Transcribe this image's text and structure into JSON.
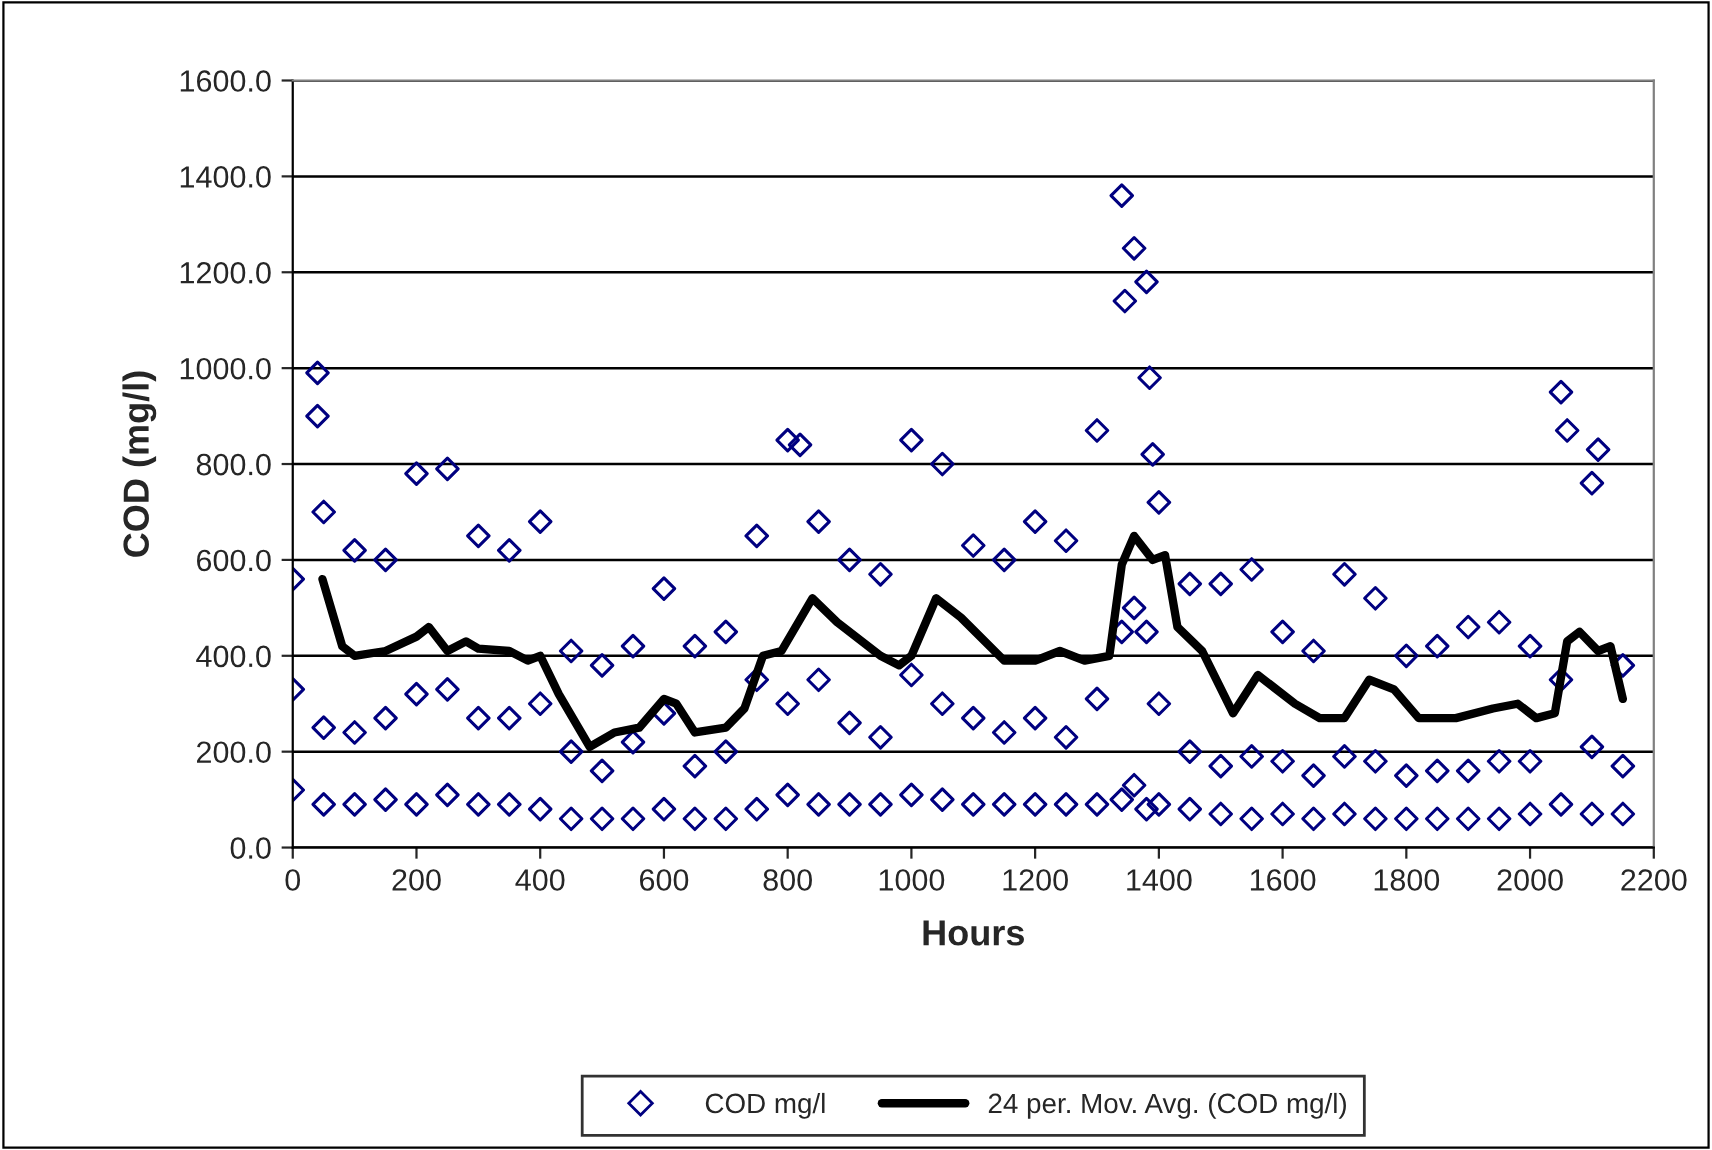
{
  "chart_data": {
    "type": "scatter",
    "xlabel": "Hours",
    "ylabel": "COD (mg/l)",
    "xlim": [
      0,
      2200
    ],
    "xticks": [
      0,
      200,
      400,
      600,
      800,
      1000,
      1200,
      1400,
      1600,
      1800,
      2000,
      2200
    ],
    "ylim": [
      0,
      1600
    ],
    "yticks": [
      {
        "value": 0,
        "label": "0.0"
      },
      {
        "value": 200,
        "label": "200.0"
      },
      {
        "value": 400,
        "label": "400.0"
      },
      {
        "value": 600,
        "label": "600.0"
      },
      {
        "value": 800,
        "label": "800.0"
      },
      {
        "value": 1000,
        "label": "1000.0"
      },
      {
        "value": 1200,
        "label": "1200.0"
      },
      {
        "value": 1400,
        "label": "1400.0"
      },
      {
        "value": 1600,
        "label": "1600.0"
      }
    ],
    "grid": "y",
    "legend": "bottom",
    "marker": "diamond",
    "series": [
      {
        "name": "COD mg/l",
        "color": "#000080",
        "x": [
          0,
          0,
          0,
          50,
          50,
          50,
          100,
          100,
          100,
          150,
          150,
          150,
          200,
          200,
          200,
          250,
          250,
          250,
          300,
          300,
          300,
          350,
          350,
          350,
          400,
          400,
          400,
          450,
          450,
          450,
          500,
          500,
          500,
          550,
          550,
          550,
          600,
          600,
          600,
          650,
          650,
          650,
          700,
          700,
          700,
          750,
          750,
          750,
          800,
          800,
          800,
          850,
          850,
          850,
          900,
          900,
          900,
          950,
          950,
          950,
          1000,
          1000,
          1000,
          1050,
          1050,
          1050,
          1100,
          1100,
          1100,
          1150,
          1150,
          1150,
          1200,
          1200,
          1200,
          1250,
          1250,
          1250,
          1300,
          1300,
          1300,
          1340,
          1340,
          1340,
          1360,
          1360,
          1360,
          1380,
          1380,
          1380,
          1400,
          1400,
          1400,
          1450,
          1450,
          1450,
          1500,
          1500,
          1500,
          1550,
          1550,
          1550,
          1600,
          1600,
          1600,
          1650,
          1650,
          1650,
          1700,
          1700,
          1700,
          1750,
          1750,
          1750,
          1800,
          1800,
          1800,
          1850,
          1850,
          1850,
          1900,
          1900,
          1900,
          1950,
          1950,
          1950,
          2000,
          2000,
          2000,
          2050,
          2050,
          2050,
          2100,
          2100,
          2100,
          2150,
          2150,
          2150,
          40,
          40,
          1345,
          1385,
          2060,
          2110,
          1390,
          820
        ],
        "values": [
          120,
          330,
          560,
          90,
          250,
          700,
          90,
          240,
          620,
          100,
          270,
          600,
          90,
          320,
          780,
          110,
          330,
          790,
          90,
          270,
          650,
          90,
          270,
          620,
          80,
          300,
          680,
          60,
          200,
          410,
          60,
          160,
          380,
          60,
          220,
          420,
          80,
          280,
          540,
          60,
          170,
          420,
          60,
          200,
          450,
          80,
          350,
          650,
          110,
          300,
          850,
          90,
          350,
          680,
          90,
          260,
          600,
          90,
          230,
          570,
          110,
          360,
          850,
          100,
          300,
          800,
          90,
          270,
          630,
          90,
          240,
          600,
          90,
          270,
          680,
          90,
          230,
          640,
          90,
          310,
          870,
          100,
          450,
          1360,
          130,
          500,
          1250,
          80,
          450,
          1180,
          90,
          300,
          720,
          80,
          200,
          550,
          70,
          170,
          550,
          60,
          190,
          580,
          70,
          180,
          450,
          60,
          150,
          410,
          70,
          190,
          570,
          60,
          180,
          520,
          60,
          150,
          400,
          60,
          160,
          420,
          60,
          160,
          460,
          60,
          180,
          470,
          70,
          180,
          420,
          90,
          350,
          950,
          70,
          210,
          760,
          70,
          170,
          380,
          990,
          900,
          1140,
          980,
          870,
          830,
          820,
          840
        ]
      },
      {
        "name": "24 per. Mov. Avg. (COD mg/l)",
        "color": "#000000",
        "type": "line",
        "marker": "none",
        "line_style": "solid",
        "x": [
          48,
          80,
          100,
          150,
          200,
          220,
          250,
          280,
          300,
          350,
          380,
          400,
          430,
          480,
          520,
          560,
          600,
          620,
          650,
          700,
          730,
          760,
          790,
          840,
          880,
          950,
          980,
          1000,
          1040,
          1080,
          1150,
          1200,
          1240,
          1280,
          1320,
          1340,
          1360,
          1390,
          1410,
          1430,
          1470,
          1520,
          1560,
          1620,
          1660,
          1700,
          1740,
          1780,
          1820,
          1880,
          1940,
          1980,
          2010,
          2040,
          2060,
          2080,
          2110,
          2130,
          2150
        ],
        "values": [
          560,
          420,
          400,
          410,
          440,
          460,
          410,
          430,
          415,
          410,
          390,
          400,
          320,
          210,
          240,
          250,
          310,
          300,
          240,
          250,
          290,
          400,
          410,
          520,
          470,
          400,
          380,
          400,
          520,
          480,
          390,
          390,
          410,
          390,
          400,
          590,
          650,
          600,
          610,
          460,
          410,
          280,
          360,
          300,
          270,
          270,
          350,
          330,
          270,
          270,
          290,
          300,
          270,
          280,
          430,
          450,
          410,
          420,
          310
        ]
      }
    ]
  }
}
